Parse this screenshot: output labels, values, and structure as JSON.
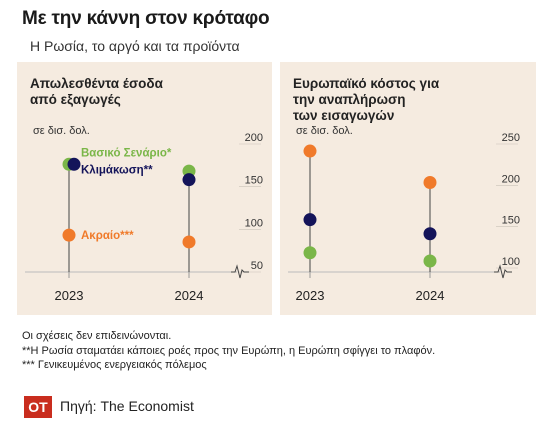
{
  "header": {
    "title": "Με την κάννη στον κρόταφο",
    "subtitle": "Η Ρωσία, το αργό και τα προϊόντα"
  },
  "chart_data": [
    {
      "type": "scatter",
      "title_lines": [
        "Απωλεσθέντα έσοδα",
        "από εξαγωγές"
      ],
      "unit": "σε δισ. δολ.",
      "x": [
        "2023",
        "2024"
      ],
      "yticks": [
        50,
        100,
        150,
        200
      ],
      "ylim": [
        40,
        205
      ],
      "series": [
        {
          "name": "Βασικό Σενάριο*",
          "color": "#7ab648",
          "values": [
            168,
            160
          ]
        },
        {
          "name": "Κλιμάκωση**",
          "color": "#14145a",
          "values": [
            168,
            150
          ]
        },
        {
          "name": "Ακραίο***",
          "color": "#f07a2a",
          "values": [
            85,
            77
          ]
        }
      ]
    },
    {
      "type": "scatter",
      "title_lines": [
        "Ευρωπαϊκό κόστος για",
        "την αναπλήρωση",
        "των εισαγωγών"
      ],
      "unit": "σε δισ. δολ.",
      "x": [
        "2023",
        "2024"
      ],
      "yticks": [
        100,
        150,
        200,
        250
      ],
      "ylim": [
        90,
        254
      ],
      "series": [
        {
          "name": "Βασικό Σενάριο*",
          "color": "#7ab648",
          "values": [
            110,
            100
          ]
        },
        {
          "name": "Κλιμάκωση**",
          "color": "#14145a",
          "values": [
            150,
            133
          ]
        },
        {
          "name": "Ακραίο***",
          "color": "#f07a2a",
          "values": [
            233,
            195
          ]
        }
      ]
    }
  ],
  "notes": [
    "Οι σχέσεις δεν επιδεινώνονται.",
    "**Η Ρωσία σταματάει κάποιες ροές προς την Ευρώπη, η Ευρώπη σφίγγει το πλαφόν.",
    "*** Γενικευμένος ενεργειακός πόλεμος"
  ],
  "footer": {
    "logo_text": "ΟΤ",
    "source": "Πηγή: The Economist"
  }
}
